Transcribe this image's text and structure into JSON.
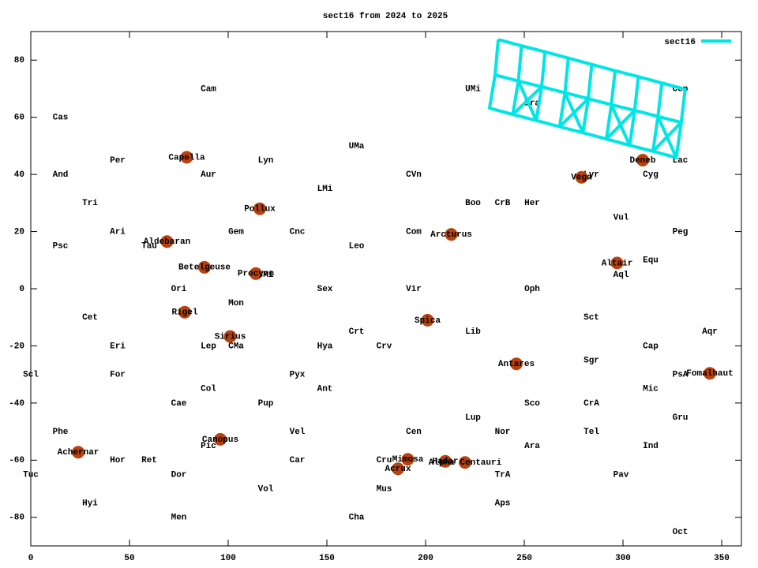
{
  "chart_data": {
    "type": "scatter",
    "title": "sect16 from 2024 to 2025",
    "xlim": [
      0,
      360
    ],
    "ylim": [
      -90,
      90
    ],
    "xticks": [
      0,
      50,
      100,
      150,
      200,
      250,
      300,
      350
    ],
    "yticks": [
      -80,
      -60,
      -40,
      -20,
      0,
      20,
      40,
      60,
      80
    ],
    "legend": "upper right",
    "constellations": {
      "names": [
        "Cam",
        "Cas",
        "UMi",
        "Cep",
        "Dra",
        "Per",
        "And",
        "Aur",
        "Lyn",
        "UMa",
        "CVn",
        "Lyr",
        "Cyg",
        "Lac",
        "LMi",
        "Tri",
        "Boo",
        "CrB",
        "Her",
        "Vul",
        "Ari",
        "Gem",
        "Cnc",
        "Com",
        "Peg",
        "Psc",
        "Tau",
        "Leo",
        "Equ",
        "Aql",
        "CMi",
        "Ori",
        "Sex",
        "Vir",
        "Oph",
        "Mon",
        "Cet",
        "Sct",
        "Crt",
        "Lib",
        "Aqr",
        "Eri",
        "Lep",
        "CMa",
        "Hya",
        "Crv",
        "Cap",
        "Sgr",
        "Scl",
        "For",
        "Pyx",
        "PsA",
        "Col",
        "Ant",
        "Mic",
        "Cae",
        "Pup",
        "Sco",
        "CrA",
        "Lup",
        "Gru",
        "Phe",
        "Vel",
        "Cen",
        "Nor",
        "Tel",
        "Pic",
        "Ara",
        "Ind",
        "Hor",
        "Ret",
        "Car",
        "Cru",
        "Tuc",
        "Dor",
        "TrA",
        "Pav",
        "Vol",
        "Mus",
        "Hyi",
        "Aps",
        "Men",
        "Cha",
        "Oct"
      ],
      "x": [
        90,
        15,
        224,
        329,
        254,
        44,
        15,
        90,
        119,
        165,
        194,
        284,
        314,
        329,
        149,
        30,
        224,
        239,
        254,
        299,
        44,
        104,
        135,
        194,
        329,
        15,
        60,
        165,
        314,
        299,
        119,
        75,
        149,
        194,
        254,
        104,
        30,
        284,
        165,
        224,
        344,
        44,
        90,
        104,
        149,
        179,
        314,
        284,
        0,
        44,
        135,
        329,
        90,
        149,
        314,
        75,
        119,
        254,
        284,
        224,
        329,
        15,
        135,
        194,
        239,
        284,
        90,
        254,
        314,
        44,
        60,
        135,
        179,
        0,
        75,
        239,
        299,
        119,
        179,
        30,
        239,
        75,
        165,
        329
      ],
      "y": [
        70,
        60,
        70,
        70,
        65,
        45,
        40,
        40,
        45,
        50,
        40,
        40,
        40,
        45,
        35,
        30,
        30,
        30,
        30,
        25,
        20,
        20,
        20,
        20,
        20,
        15,
        15,
        15,
        10,
        5,
        5,
        0,
        0,
        0,
        0,
        -5,
        -10,
        -10,
        -15,
        -15,
        -15,
        -20,
        -20,
        -20,
        -20,
        -20,
        -20,
        -25,
        -30,
        -30,
        -30,
        -30,
        -35,
        -35,
        -35,
        -40,
        -40,
        -40,
        -40,
        -45,
        -45,
        -50,
        -50,
        -50,
        -50,
        -50,
        -55,
        -55,
        -55,
        -60,
        -60,
        -60,
        -60,
        -65,
        -65,
        -65,
        -65,
        -70,
        -70,
        -75,
        -75,
        -80,
        -80,
        -85
      ]
    },
    "stars": {
      "color": "#b8420f",
      "names": [
        "Capella",
        "Deneb",
        "Vega",
        "Pollux",
        "Arcturus",
        "Aldebaran",
        "Altair",
        "Betelgeuse",
        "Procyon",
        "Rigel",
        "Spica",
        "Sirius",
        "Antares",
        "Fomalhaut",
        "Canopus",
        "Achernar",
        "Mimosa",
        "Hadar",
        "Alpha Centauri",
        "Acrux"
      ],
      "x": [
        79,
        310,
        279,
        116,
        213,
        69,
        297,
        88,
        114,
        78,
        201,
        101,
        246,
        344,
        96,
        24,
        191,
        210,
        220,
        186
      ],
      "y": [
        46,
        45,
        39,
        28,
        19,
        16.5,
        9,
        7.5,
        5.3,
        -8.2,
        -11,
        -16.7,
        -26.3,
        -29.6,
        -52.7,
        -57.2,
        -59.7,
        -60.4,
        -60.8,
        -63
      ]
    },
    "series": [
      {
        "name": "sect16",
        "color": "#00e5e5",
        "x": [
          236.8,
          235.2,
          232.4,
          244.2,
          247.0,
          248.6,
          260.5,
          258.8,
          256.1,
          267.9,
          270.6,
          272.3,
          284.2,
          282.4,
          279.7,
          291.6,
          294.1,
          296.0,
          307.8,
          305.9,
          303.4,
          315.2,
          317.7,
          319.7,
          331.5,
          329.5,
          327.0,
          null,
          236.8,
          248.6,
          260.5,
          272.3,
          284.2,
          296.0,
          307.8,
          319.7,
          331.5,
          null,
          235.2,
          247.0,
          258.8,
          270.6,
          282.4,
          294.1,
          305.9,
          317.7,
          329.5,
          null,
          232.4,
          244.2,
          256.1,
          267.9,
          279.7,
          291.6,
          303.4,
          315.2,
          327.0,
          null,
          247.0,
          256.1,
          258.8,
          244.2,
          null,
          270.6,
          279.7,
          282.4,
          267.9,
          null,
          294.1,
          303.4,
          305.9,
          291.6,
          null,
          317.7,
          327.0,
          329.5,
          315.2
        ],
        "values": [
          87.2,
          74.8,
          63.2,
          61.0,
          72.7,
          85.0,
          82.9,
          70.7,
          58.9,
          56.7,
          68.6,
          80.7,
          78.5,
          66.5,
          54.6,
          52.4,
          64.4,
          76.3,
          74.2,
          62.4,
          50.2,
          48.1,
          60.3,
          72.0,
          69.8,
          58.2,
          45.9,
          null,
          87.2,
          85.0,
          82.9,
          80.7,
          78.5,
          76.3,
          74.2,
          72.0,
          69.8,
          null,
          74.8,
          72.7,
          70.7,
          68.6,
          66.5,
          64.4,
          62.4,
          60.3,
          58.2,
          null,
          63.2,
          61.0,
          58.9,
          56.7,
          54.6,
          52.4,
          50.2,
          48.1,
          45.9,
          null,
          72.7,
          58.9,
          70.7,
          61.0,
          null,
          68.6,
          54.6,
          66.5,
          56.7,
          null,
          64.4,
          50.2,
          62.4,
          52.4,
          null,
          60.3,
          45.9,
          58.2,
          48.1
        ]
      }
    ]
  }
}
